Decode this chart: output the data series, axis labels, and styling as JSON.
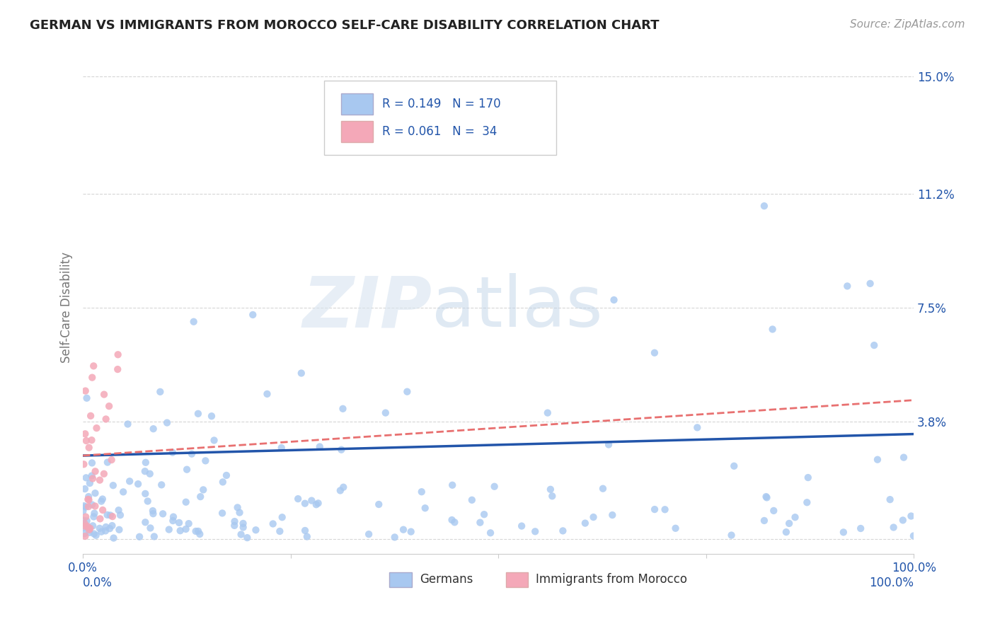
{
  "title": "GERMAN VS IMMIGRANTS FROM MOROCCO SELF-CARE DISABILITY CORRELATION CHART",
  "source": "Source: ZipAtlas.com",
  "ylabel": "Self-Care Disability",
  "xlabel": "",
  "xlim": [
    0.0,
    1.0
  ],
  "ylim": [
    -0.005,
    0.155
  ],
  "yticks": [
    0.0,
    0.038,
    0.075,
    0.112,
    0.15
  ],
  "ytick_labels": [
    "",
    "3.8%",
    "7.5%",
    "11.2%",
    "15.0%"
  ],
  "xticks": [
    0.0,
    0.25,
    0.5,
    0.75,
    1.0
  ],
  "xtick_labels": [
    "0.0%",
    "",
    "",
    "",
    "100.0%"
  ],
  "german_color": "#a8c8f0",
  "morocco_color": "#f4a8b8",
  "german_line_color": "#2255aa",
  "morocco_line_color": "#e87070",
  "watermark_zip": "ZIP",
  "watermark_atlas": "atlas",
  "legend_R_german": "0.149",
  "legend_N_german": "170",
  "legend_R_morocco": "0.061",
  "legend_N_morocco": "34",
  "legend_label_german": "Germans",
  "legend_label_morocco": "Immigrants from Morocco",
  "background_color": "#ffffff",
  "grid_color": "#cccccc",
  "title_color": "#222222",
  "axis_label_color": "#777777",
  "tick_color": "#2255aa",
  "seed": 42
}
